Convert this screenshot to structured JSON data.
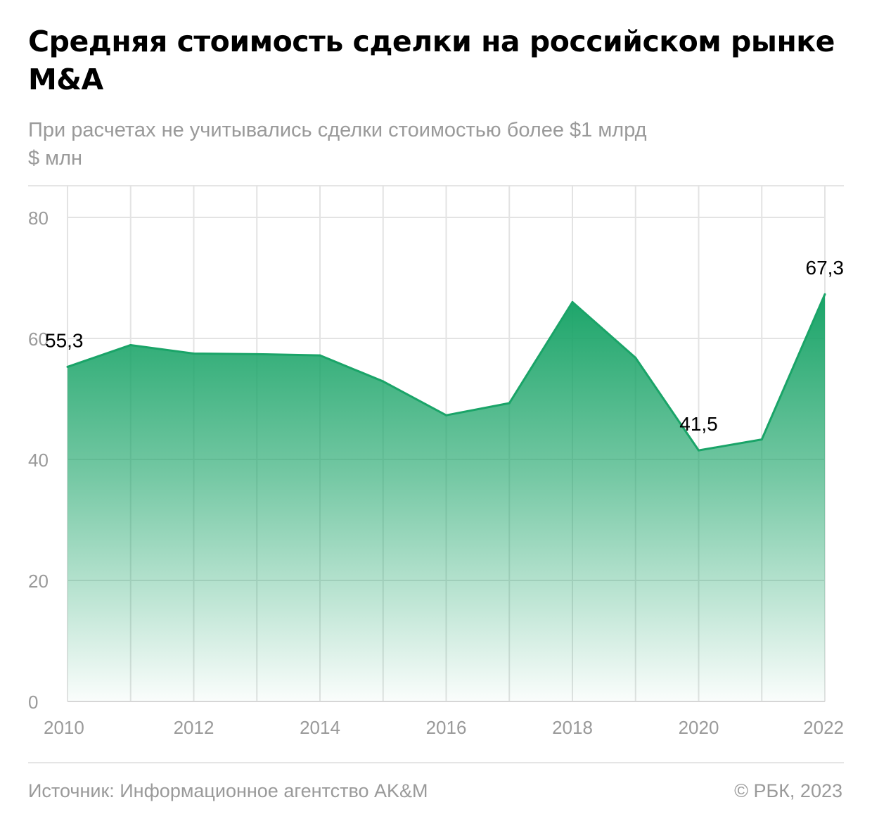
{
  "header": {
    "title": "Средняя стоимость сделки на российском рынке M&A",
    "subtitle": "При расчетах не учитывались сделки стоимостью более $1 млрд",
    "unit": "$ млн"
  },
  "footer": {
    "source": "Источник: Информационное агентство AK&M",
    "copyright": "© РБК, 2023"
  },
  "colors": {
    "line": "#1aa468",
    "fill_top": "#1aa468",
    "grid": "#e3e3e3",
    "axis_text": "#9a9a9a",
    "label_text": "#000000"
  },
  "chart_data": {
    "type": "area",
    "x": [
      2010,
      2011,
      2012,
      2013,
      2014,
      2015,
      2016,
      2017,
      2018,
      2019,
      2020,
      2021,
      2022
    ],
    "values": [
      55.3,
      58.9,
      57.5,
      57.4,
      57.2,
      52.9,
      47.3,
      49.3,
      66.0,
      56.8,
      41.5,
      43.3,
      67.3
    ],
    "ylim": [
      0,
      80
    ],
    "y_ticks": [
      "0",
      "20",
      "40",
      "60",
      "80"
    ],
    "x_tick_labels": [
      "2010",
      "2012",
      "2014",
      "2016",
      "2018",
      "2020",
      "2022"
    ],
    "annotations": [
      {
        "year": 2010,
        "text": "55,3"
      },
      {
        "year": 2020,
        "text": "41,5"
      },
      {
        "year": 2022,
        "text": "67,3"
      }
    ],
    "grid": true,
    "legend": "none"
  }
}
